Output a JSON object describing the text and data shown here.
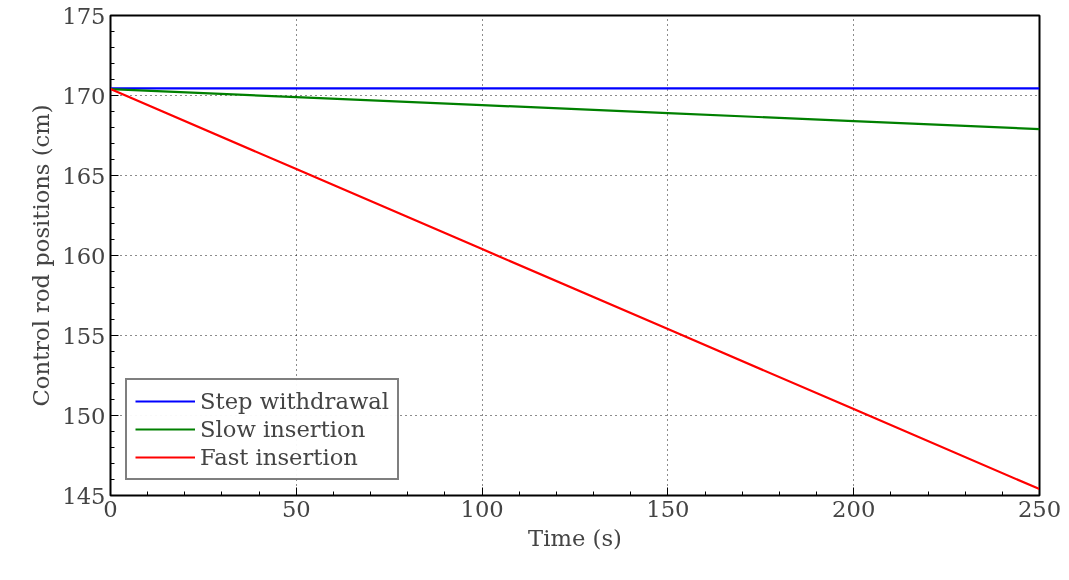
{
  "chart_data": {
    "type": "line",
    "xlabel": "Time (s)",
    "ylabel": "Control rod positions (cm)",
    "xlim": [
      0,
      250
    ],
    "ylim": [
      145,
      175
    ],
    "xticks": [
      0,
      50,
      100,
      150,
      200,
      250
    ],
    "yticks": [
      145,
      150,
      155,
      160,
      165,
      170,
      175
    ],
    "grid": true,
    "legend": "bottom left",
    "line_style": "solid",
    "marker": "none",
    "series": [
      {
        "name": "Step withdrawal",
        "color": "#0000ff",
        "x": [
          0,
          50,
          100,
          150,
          200,
          250
        ],
        "values": [
          170.45,
          170.45,
          170.45,
          170.45,
          170.45,
          170.45
        ]
      },
      {
        "name": "Slow insertion",
        "color": "#008000",
        "x": [
          0,
          50,
          100,
          150,
          200,
          250
        ],
        "values": [
          170.4,
          169.9,
          169.4,
          168.9,
          168.4,
          167.9
        ]
      },
      {
        "name": "Fast insertion",
        "color": "#ff0000",
        "x": [
          0,
          50,
          100,
          150,
          200,
          250
        ],
        "values": [
          170.4,
          165.4,
          160.4,
          155.4,
          150.4,
          145.4
        ]
      }
    ]
  }
}
